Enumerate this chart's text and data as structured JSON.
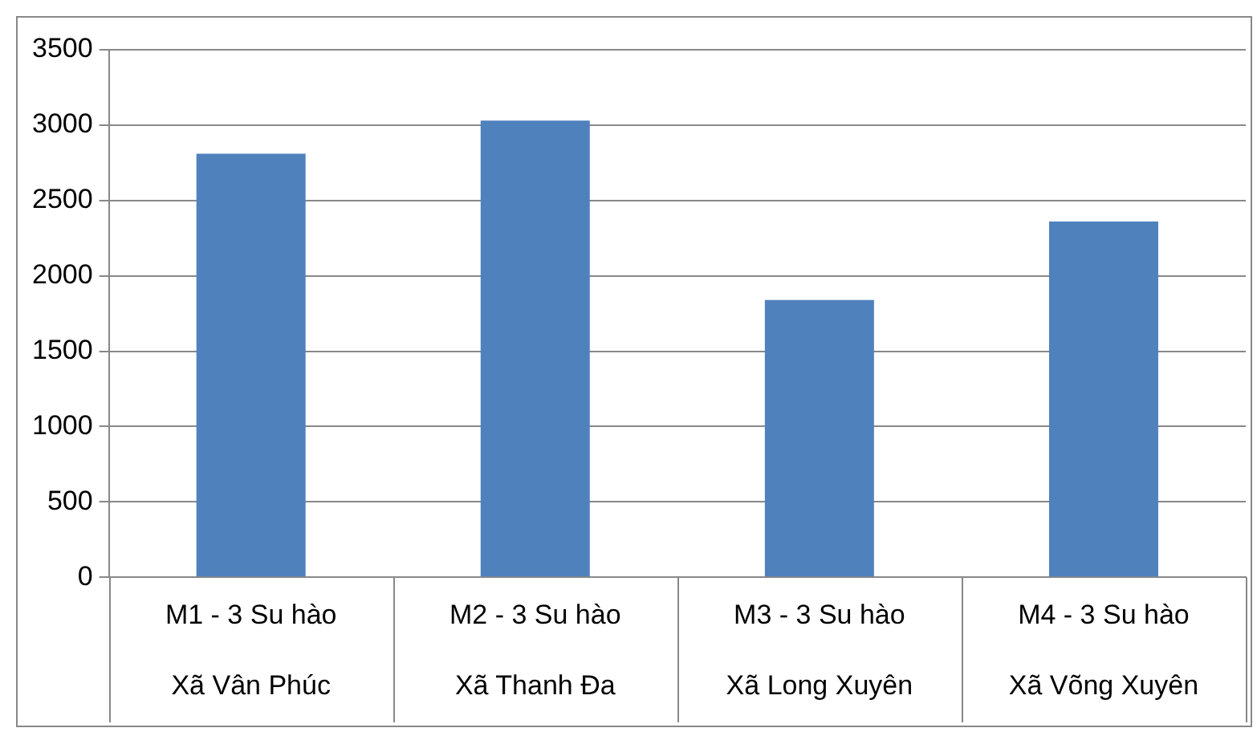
{
  "chart_data": {
    "type": "bar",
    "categories": [
      "M1 - 3 Su hào\nXã Vân Phúc",
      "M2 - 3 Su hào\nXã Thanh Đa",
      "M3 - 3 Su hào\nXã Long Xuyên",
      "M4 - 3 Su hào\nXã Võng Xuyên"
    ],
    "values": [
      2810,
      3030,
      1840,
      2360
    ],
    "color": "#4f81bd",
    "ylim": [
      0,
      3500
    ],
    "yticks": [
      0,
      500,
      1000,
      1500,
      2000,
      2500,
      3000,
      3500
    ],
    "grid": "y",
    "legend": false
  }
}
